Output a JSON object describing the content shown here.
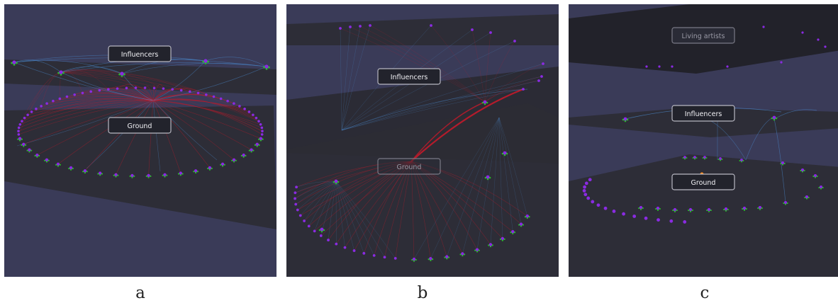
{
  "captions": {
    "a": "a",
    "b": "b",
    "c": "c"
  },
  "panels": {
    "a": {
      "layers": [
        "Influencers",
        "Ground"
      ]
    },
    "b": {
      "layers": [
        "Influencers",
        "Ground"
      ]
    },
    "c": {
      "layers": [
        "Living artists",
        "Influencers",
        "Ground"
      ]
    }
  },
  "colors": {
    "background": "#3a3b58",
    "plane": "#2c2c34",
    "edge_red": "#c41a2a",
    "edge_blue": "#4a86c8",
    "node_purple": "#8a2be2",
    "node_green": "#28c228",
    "node_orange": "#ff8c1a"
  }
}
